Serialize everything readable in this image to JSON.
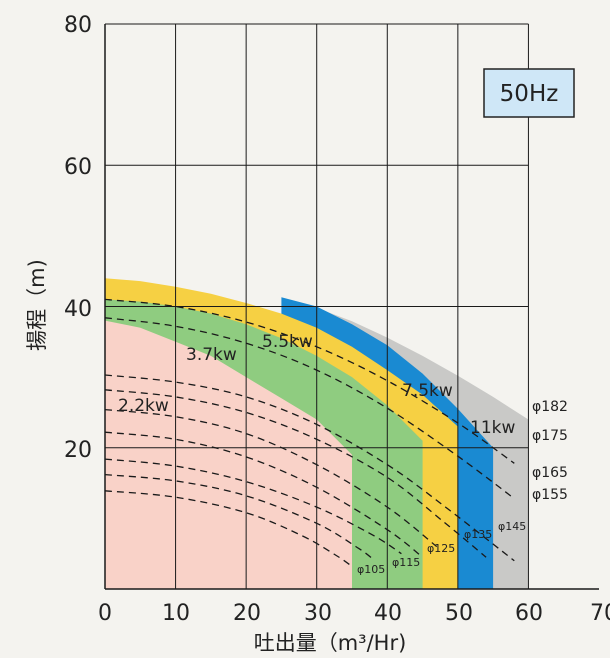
{
  "chart_data": {
    "type": "area",
    "title": "",
    "badge": "50Hz",
    "xlabel": "吐出量（m³/Hr)",
    "ylabel": "揚程（m)",
    "xlim": [
      0,
      70
    ],
    "ylim": [
      0,
      80
    ],
    "x_ticks": [
      "0",
      "10",
      "20",
      "30",
      "40",
      "50",
      "60",
      "70"
    ],
    "y_ticks": [
      "20",
      "40",
      "60",
      "80"
    ],
    "y_tick_values": [
      20,
      40,
      60,
      80
    ],
    "grid": true,
    "colors": {
      "2.2kw": "#f9d2c8",
      "3.7kw": "#8fcc80",
      "5.5kw": "#f6d043",
      "7.5kw": "#1a8ad2",
      "11kw": "#c9c9c7",
      "badge_bg": "#cfe7f7",
      "grid": "#1a1a1a"
    },
    "power_regions": [
      {
        "name": "2.2kw",
        "boundary": [
          [
            0,
            38
          ],
          [
            5,
            37
          ],
          [
            10,
            35
          ],
          [
            15,
            33
          ],
          [
            20,
            30
          ],
          [
            25,
            27
          ],
          [
            30,
            24
          ],
          [
            35,
            19
          ],
          [
            35,
            0
          ],
          [
            0,
            0
          ]
        ]
      },
      {
        "name": "3.7kw",
        "boundary": [
          [
            0,
            41
          ],
          [
            5,
            40.7
          ],
          [
            10,
            40
          ],
          [
            15,
            39
          ],
          [
            20,
            37.5
          ],
          [
            25,
            35.5
          ],
          [
            30,
            33
          ],
          [
            35,
            30
          ],
          [
            40,
            26
          ],
          [
            45,
            21
          ],
          [
            45,
            0
          ],
          [
            0,
            0
          ]
        ]
      },
      {
        "name": "5.5kw",
        "boundary": [
          [
            0,
            44
          ],
          [
            5,
            43.6
          ],
          [
            10,
            42.8
          ],
          [
            15,
            41.8
          ],
          [
            20,
            40.5
          ],
          [
            25,
            39
          ],
          [
            30,
            37
          ],
          [
            35,
            34.3
          ],
          [
            40,
            31
          ],
          [
            45,
            27.5
          ],
          [
            50,
            23
          ],
          [
            50,
            0
          ],
          [
            0,
            0
          ]
        ]
      },
      {
        "name": "7.5kw",
        "boundary": [
          [
            25,
            41.3
          ],
          [
            30,
            40
          ],
          [
            35,
            37.5
          ],
          [
            40,
            34.5
          ],
          [
            45,
            30.5
          ],
          [
            50,
            25.5
          ],
          [
            55,
            20
          ],
          [
            55,
            0
          ],
          [
            25,
            0
          ]
        ]
      },
      {
        "name": "11kw",
        "boundary": [
          [
            30,
            39.8
          ],
          [
            35,
            37.9
          ],
          [
            40,
            35.6
          ],
          [
            45,
            33
          ],
          [
            50,
            30.2
          ],
          [
            55,
            27.2
          ],
          [
            60,
            24
          ],
          [
            60,
            0
          ],
          [
            30,
            0
          ]
        ]
      }
    ],
    "impeller_curves": [
      {
        "name": "φ182",
        "points": [
          [
            0,
            41
          ],
          [
            10,
            40
          ],
          [
            20,
            37.8
          ],
          [
            30,
            34.3
          ],
          [
            40,
            29.5
          ],
          [
            50,
            23.5
          ],
          [
            58,
            17.8
          ]
        ]
      },
      {
        "name": "φ175",
        "points": [
          [
            0,
            38.4
          ],
          [
            10,
            37.2
          ],
          [
            20,
            34.8
          ],
          [
            30,
            31
          ],
          [
            40,
            25.6
          ],
          [
            50,
            18.8
          ],
          [
            58,
            12.8
          ]
        ]
      },
      {
        "name": "φ165",
        "points": [
          [
            0,
            30.3
          ],
          [
            10,
            29.3
          ],
          [
            20,
            27.2
          ],
          [
            30,
            23.3
          ],
          [
            40,
            17.6
          ],
          [
            48,
            11.8
          ],
          [
            58,
            4
          ]
        ]
      },
      {
        "name": "φ155",
        "points": [
          [
            0,
            28.2
          ],
          [
            10,
            27.2
          ],
          [
            20,
            25
          ],
          [
            30,
            21.2
          ],
          [
            40,
            15.8
          ],
          [
            48,
            9.5
          ],
          [
            54,
            4.5
          ]
        ]
      },
      {
        "name": "φ145",
        "points": [
          [
            0,
            25.4
          ],
          [
            10,
            24.4
          ],
          [
            20,
            22
          ],
          [
            30,
            17.6
          ],
          [
            40,
            11.6
          ],
          [
            47,
            6
          ]
        ]
      },
      {
        "name": "φ135",
        "points": [
          [
            0,
            22.2
          ],
          [
            10,
            21.2
          ],
          [
            20,
            18.7
          ],
          [
            30,
            14.4
          ],
          [
            40,
            8.4
          ],
          [
            45,
            4.5
          ]
        ]
      },
      {
        "name": "φ125",
        "points": [
          [
            0,
            18.4
          ],
          [
            10,
            17.4
          ],
          [
            20,
            15.2
          ],
          [
            30,
            11.6
          ],
          [
            38,
            7.6
          ],
          [
            42,
            5
          ]
        ]
      },
      {
        "name": "φ115",
        "points": [
          [
            0,
            16.2
          ],
          [
            10,
            15.3
          ],
          [
            20,
            13.2
          ],
          [
            30,
            9.3
          ],
          [
            36,
            5.7
          ],
          [
            38,
            4.2
          ]
        ]
      },
      {
        "name": "φ105",
        "points": [
          [
            0,
            13.9
          ],
          [
            10,
            13
          ],
          [
            20,
            10.8
          ],
          [
            28,
            7.5
          ],
          [
            33,
            4.6
          ],
          [
            35,
            3.2
          ]
        ]
      }
    ],
    "region_labels": [
      "2.2kw",
      "3.7kw",
      "5.5kw",
      "7.5kw",
      "11kw"
    ],
    "curve_labels": [
      "φ182",
      "φ175",
      "φ165",
      "φ155",
      "φ145",
      "φ135",
      "φ125",
      "φ115",
      "φ105"
    ]
  }
}
